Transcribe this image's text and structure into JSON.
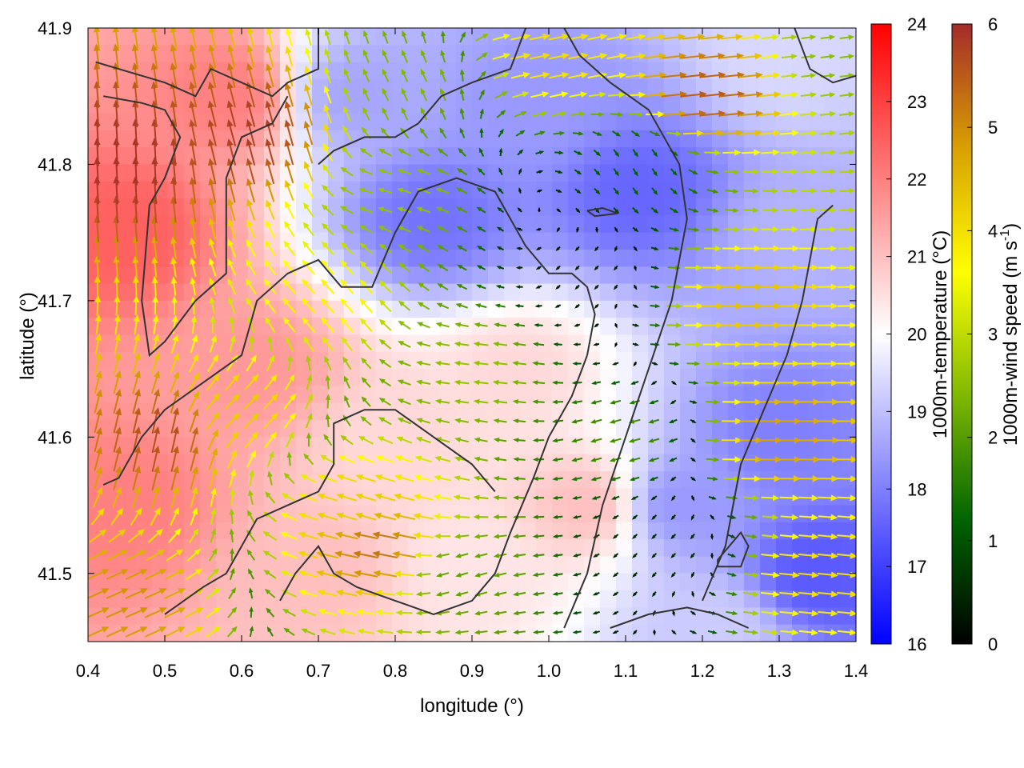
{
  "chart_data": {
    "type": "heatmap",
    "title": "",
    "xlabel": "longitude (°)",
    "ylabel": "latitude (°)",
    "xlim": [
      0.4,
      1.4
    ],
    "ylim": [
      41.45,
      41.9
    ],
    "xticks": [
      "0.4",
      "0.5",
      "0.6",
      "0.7",
      "0.8",
      "0.9",
      "1.0",
      "1.1",
      "1.2",
      "1.3",
      "1.4"
    ],
    "yticks": [
      "41.5",
      "41.6",
      "41.7",
      "41.8",
      "41.9"
    ],
    "temperature_colorbar": {
      "label": "1000m-temperature (°C)",
      "range": [
        16,
        24
      ],
      "ticks": [
        "16",
        "17",
        "18",
        "19",
        "20",
        "21",
        "22",
        "23",
        "24"
      ],
      "colors": [
        "#0000ff",
        "#ffffff",
        "#ff0000"
      ]
    },
    "wind_colorbar": {
      "label_main": "1000m-wind speed (m s",
      "label_sup": "-1",
      "label_end": ")",
      "range": [
        0,
        6
      ],
      "ticks": [
        "0",
        "1",
        "2",
        "3",
        "4",
        "5",
        "6"
      ],
      "colors": [
        "#000000",
        "#006400",
        "#7fb800",
        "#ffff00",
        "#d8a000",
        "#a52a2a"
      ]
    },
    "temperature_field_anchors": [
      {
        "lon": 0.45,
        "lat": 41.75,
        "t": 22.5
      },
      {
        "lon": 0.45,
        "lat": 41.55,
        "t": 22.0
      },
      {
        "lon": 0.58,
        "lat": 41.85,
        "t": 22.0
      },
      {
        "lon": 0.62,
        "lat": 41.65,
        "t": 21.6
      },
      {
        "lon": 0.7,
        "lat": 41.5,
        "t": 21.0
      },
      {
        "lon": 0.75,
        "lat": 41.85,
        "t": 18.6
      },
      {
        "lon": 0.85,
        "lat": 41.76,
        "t": 17.8
      },
      {
        "lon": 0.98,
        "lat": 41.84,
        "t": 18.4
      },
      {
        "lon": 1.12,
        "lat": 41.78,
        "t": 17.6
      },
      {
        "lon": 0.96,
        "lat": 41.65,
        "t": 20.6
      },
      {
        "lon": 1.05,
        "lat": 41.55,
        "t": 21.0
      },
      {
        "lon": 0.9,
        "lat": 41.5,
        "t": 20.4
      },
      {
        "lon": 1.17,
        "lat": 41.55,
        "t": 18.4
      },
      {
        "lon": 1.3,
        "lat": 41.6,
        "t": 18.0
      },
      {
        "lon": 1.35,
        "lat": 41.5,
        "t": 17.4
      },
      {
        "lon": 1.32,
        "lat": 41.75,
        "t": 18.8
      },
      {
        "lon": 1.3,
        "lat": 41.88,
        "t": 19.4
      },
      {
        "lon": 0.8,
        "lat": 41.6,
        "t": 20.6
      },
      {
        "lon": 1.22,
        "lat": 41.46,
        "t": 19.2
      }
    ],
    "wind_field_anchors": [
      {
        "lon": 0.45,
        "lat": 41.8,
        "u": -0.3,
        "v": 5.9
      },
      {
        "lon": 0.5,
        "lat": 41.6,
        "u": 1.2,
        "v": 5.5
      },
      {
        "lon": 0.45,
        "lat": 41.48,
        "u": 4.5,
        "v": 2.0
      },
      {
        "lon": 0.62,
        "lat": 41.82,
        "u": -1.5,
        "v": 5.6
      },
      {
        "lon": 0.6,
        "lat": 41.62,
        "u": 3.0,
        "v": 3.0
      },
      {
        "lon": 0.7,
        "lat": 41.7,
        "u": -2.5,
        "v": 2.8
      },
      {
        "lon": 0.75,
        "lat": 41.55,
        "u": -4.0,
        "v": 1.2
      },
      {
        "lon": 0.78,
        "lat": 41.52,
        "u": -5.2,
        "v": 1.0
      },
      {
        "lon": 0.8,
        "lat": 41.78,
        "u": -2.5,
        "v": 0.8
      },
      {
        "lon": 0.82,
        "lat": 41.86,
        "u": -1.0,
        "v": 2.2
      },
      {
        "lon": 0.9,
        "lat": 41.65,
        "u": -2.6,
        "v": 0.3
      },
      {
        "lon": 0.88,
        "lat": 41.5,
        "u": -2.0,
        "v": -0.6
      },
      {
        "lon": 1.0,
        "lat": 41.88,
        "u": 4.0,
        "v": 0.8
      },
      {
        "lon": 1.05,
        "lat": 41.72,
        "u": -0.3,
        "v": -0.3
      },
      {
        "lon": 1.1,
        "lat": 41.6,
        "u": -1.8,
        "v": -0.5
      },
      {
        "lon": 1.15,
        "lat": 41.52,
        "u": -0.4,
        "v": -0.4
      },
      {
        "lon": 1.2,
        "lat": 41.85,
        "u": 5.5,
        "v": 0.6
      },
      {
        "lon": 1.25,
        "lat": 41.7,
        "u": 4.4,
        "v": 0.0
      },
      {
        "lon": 1.3,
        "lat": 41.6,
        "u": 4.8,
        "v": 0.0
      },
      {
        "lon": 1.35,
        "lat": 41.5,
        "u": 4.0,
        "v": -0.4
      },
      {
        "lon": 1.38,
        "lat": 41.88,
        "u": 2.5,
        "v": 0.3
      },
      {
        "lon": 1.12,
        "lat": 41.8,
        "u": 0.6,
        "v": -1.0
      }
    ],
    "contours": [
      [
        [
          0.41,
          41.875
        ],
        [
          0.5,
          41.86
        ],
        [
          0.54,
          41.85
        ],
        [
          0.56,
          41.87
        ],
        [
          0.6,
          41.86
        ],
        [
          0.64,
          41.85
        ],
        [
          0.66,
          41.86
        ],
        [
          0.7,
          41.87
        ],
        [
          0.7,
          41.9
        ]
      ],
      [
        [
          0.42,
          41.85
        ],
        [
          0.47,
          41.845
        ],
        [
          0.5,
          41.84
        ],
        [
          0.52,
          41.82
        ],
        [
          0.5,
          41.79
        ],
        [
          0.48,
          41.77
        ],
        [
          0.47,
          41.7
        ],
        [
          0.48,
          41.66
        ],
        [
          0.5,
          41.67
        ],
        [
          0.54,
          41.7
        ],
        [
          0.58,
          41.72
        ],
        [
          0.58,
          41.79
        ],
        [
          0.6,
          41.82
        ],
        [
          0.64,
          41.83
        ],
        [
          0.66,
          41.85
        ]
      ],
      [
        [
          0.42,
          41.565
        ],
        [
          0.44,
          41.57
        ],
        [
          0.47,
          41.6
        ],
        [
          0.5,
          41.62
        ],
        [
          0.55,
          41.64
        ],
        [
          0.6,
          41.66
        ],
        [
          0.62,
          41.7
        ],
        [
          0.66,
          41.72
        ],
        [
          0.7,
          41.73
        ],
        [
          0.73,
          41.71
        ],
        [
          0.77,
          41.71
        ],
        [
          0.8,
          41.75
        ],
        [
          0.83,
          41.78
        ],
        [
          0.88,
          41.79
        ],
        [
          0.93,
          41.78
        ],
        [
          0.97,
          41.74
        ],
        [
          1.0,
          41.72
        ],
        [
          1.03,
          41.72
        ],
        [
          1.05,
          41.71
        ],
        [
          1.06,
          41.69
        ],
        [
          1.05,
          41.66
        ]
      ],
      [
        [
          1.05,
          41.66
        ],
        [
          1.03,
          41.63
        ],
        [
          1.0,
          41.6
        ],
        [
          0.98,
          41.57
        ],
        [
          0.95,
          41.53
        ],
        [
          0.93,
          41.5
        ],
        [
          0.9,
          41.48
        ],
        [
          0.85,
          41.47
        ],
        [
          0.8,
          41.48
        ],
        [
          0.75,
          41.49
        ],
        [
          0.72,
          41.5
        ],
        [
          0.7,
          41.52
        ],
        [
          0.67,
          41.5
        ],
        [
          0.65,
          41.48
        ]
      ],
      [
        [
          0.5,
          41.47
        ],
        [
          0.55,
          41.49
        ],
        [
          0.58,
          41.5
        ],
        [
          0.6,
          41.52
        ],
        [
          0.62,
          41.54
        ],
        [
          0.66,
          41.55
        ],
        [
          0.7,
          41.56
        ],
        [
          0.72,
          41.58
        ],
        [
          0.72,
          41.61
        ],
        [
          0.76,
          41.62
        ],
        [
          0.8,
          41.62
        ],
        [
          0.85,
          41.6
        ],
        [
          0.9,
          41.58
        ],
        [
          0.93,
          41.56
        ]
      ],
      [
        [
          0.97,
          41.9
        ],
        [
          0.95,
          41.87
        ],
        [
          0.9,
          41.86
        ],
        [
          0.86,
          41.85
        ],
        [
          0.83,
          41.83
        ],
        [
          0.8,
          41.82
        ],
        [
          0.76,
          41.82
        ],
        [
          0.72,
          41.81
        ],
        [
          0.7,
          41.8
        ]
      ],
      [
        [
          1.02,
          41.46
        ],
        [
          1.05,
          41.5
        ],
        [
          1.07,
          41.55
        ],
        [
          1.1,
          41.6
        ],
        [
          1.13,
          41.65
        ],
        [
          1.16,
          41.7
        ],
        [
          1.18,
          41.76
        ],
        [
          1.17,
          41.8
        ],
        [
          1.13,
          41.84
        ],
        [
          1.08,
          41.86
        ],
        [
          1.04,
          41.88
        ],
        [
          1.02,
          41.9
        ]
      ],
      [
        [
          1.2,
          41.48
        ],
        [
          1.23,
          41.52
        ],
        [
          1.25,
          41.58
        ],
        [
          1.28,
          41.62
        ],
        [
          1.31,
          41.66
        ],
        [
          1.33,
          41.7
        ],
        [
          1.35,
          41.76
        ],
        [
          1.37,
          41.77
        ]
      ],
      [
        [
          1.08,
          41.46
        ],
        [
          1.13,
          41.47
        ],
        [
          1.18,
          41.475
        ],
        [
          1.22,
          41.47
        ],
        [
          1.26,
          41.46
        ]
      ],
      [
        [
          1.32,
          41.9
        ],
        [
          1.34,
          41.87
        ],
        [
          1.37,
          41.86
        ],
        [
          1.4,
          41.865
        ]
      ],
      [
        [
          1.22,
          41.505
        ],
        [
          1.25,
          41.505
        ],
        [
          1.26,
          41.52
        ],
        [
          1.25,
          41.53
        ],
        [
          1.22,
          41.51
        ],
        [
          1.22,
          41.505
        ]
      ],
      [
        [
          1.05,
          41.766
        ],
        [
          1.07,
          41.768
        ],
        [
          1.09,
          41.764
        ],
        [
          1.06,
          41.762
        ],
        [
          1.05,
          41.766
        ]
      ]
    ]
  }
}
